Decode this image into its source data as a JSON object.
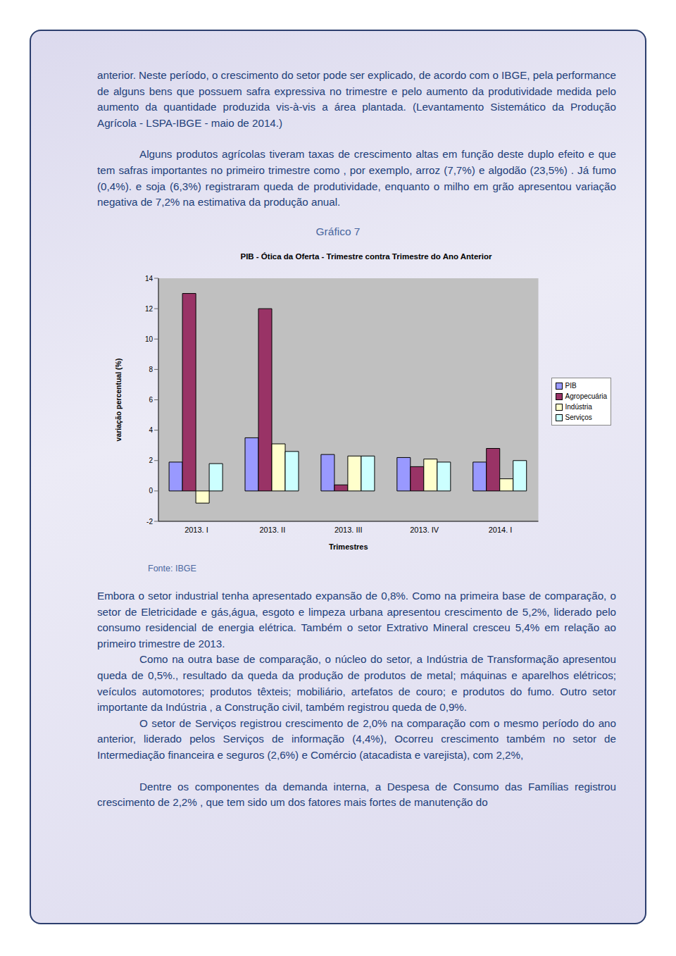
{
  "document": {
    "paragraphs_top": [
      "anterior. Neste período, o crescimento do setor pode ser explicado, de acordo com o IBGE, pela performance de alguns bens que possuem safra expressiva no trimestre e pelo aumento da produtividade medida pelo aumento da quantidade produzida vis-à-vis a área plantada. (Levantamento Sistemático da Produção Agrícola - LSPA-IBGE - maio de 2014.)",
      "Alguns produtos agrícolas tiveram taxas de crescimento altas em função deste duplo efeito e que tem safras importantes no primeiro trimestre como , por exemplo, arroz (7,7%) e algodão (23,5%) . Já fumo (0,4%). e soja (6,3%) registraram queda de produtividade, enquanto o milho em grão apresentou variação negativa de 7,2% na estimativa da produção anual."
    ],
    "caption": "Gráfico 7",
    "source": "Fonte: IBGE",
    "paragraphs_bottom": [
      "Embora o setor industrial tenha apresentado expansão de 0,8%. Como na primeira base de comparação, o setor de Eletricidade e gás,água, esgoto e limpeza urbana apresentou crescimento de 5,2%, liderado pelo consumo residencial de energia elétrica. Também o setor Extrativo Mineral cresceu 5,4% em relação ao primeiro trimestre de 2013.",
      "Como na outra base de comparação, o núcleo do setor, a Indústria de Transformação apresentou queda de 0,5%., resultado da queda da produção de produtos de metal; máquinas e aparelhos elétricos; veículos automotores; produtos têxteis; mobiliário, artefatos de couro; e produtos do fumo. Outro setor importante da Indústria , a Construção civil, também registrou queda de 0,9%.",
      "O setor de Serviços registrou crescimento de 2,0% na comparação com o mesmo período do ano anterior, liderado pelos Serviços de informação (4,4%), Ocorreu crescimento também no setor de Intermediação financeira e seguros (2,6%) e Comércio (atacadista e varejista), com 2,2%,",
      "Dentre os componentes da demanda interna, a Despesa de Consumo das Famílias registrou crescimento de 2,2% , que tem sido um dos fatores mais fortes de manutenção do"
    ]
  },
  "chart_data": {
    "type": "bar",
    "title": "PIB - Ótica da Oferta - Trimestre contra Trimestre do Ano Anterior",
    "x_label": "Trimestres",
    "y_label": "variação percentual (%)",
    "categories": [
      "2013. I",
      "2013. II",
      "2013. III",
      "2013. IV",
      "2014. I"
    ],
    "series": [
      {
        "name": "PIB",
        "color": "#9999ff",
        "values": [
          1.9,
          3.5,
          2.4,
          2.2,
          1.9
        ]
      },
      {
        "name": "Agropecuária",
        "color": "#993366",
        "values": [
          13.0,
          12.0,
          0.4,
          1.6,
          2.8
        ]
      },
      {
        "name": "Indústria",
        "color": "#ffffcc",
        "values": [
          -0.8,
          3.1,
          2.3,
          2.1,
          0.8
        ]
      },
      {
        "name": "Serviços",
        "color": "#ccffff",
        "values": [
          1.8,
          2.6,
          2.3,
          1.9,
          2.0
        ]
      }
    ],
    "ylim": [
      -2,
      14
    ],
    "yticks": [
      -2,
      0,
      2,
      4,
      6,
      8,
      10,
      12,
      14
    ],
    "grid": false,
    "legend": "right"
  }
}
